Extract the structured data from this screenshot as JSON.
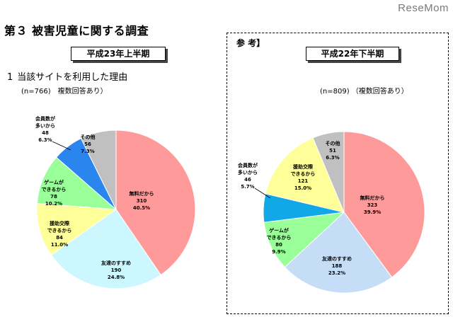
{
  "watermark": "ReseMom",
  "page_title": "第３ 被害児童に関する調査",
  "reference_label": "参 考】",
  "section": {
    "number": "1",
    "title": "当該サイトを利用した理由"
  },
  "chart_data": [
    {
      "type": "pie",
      "period": "平成23年上半期",
      "note": "(n=766)　複数回答あり）",
      "slices": [
        {
          "label": "無料だから",
          "count": "310",
          "percent": "40.5%",
          "value": 40.5,
          "color": "#ff9a9a"
        },
        {
          "label": "友達のすすめ",
          "count": "190",
          "percent": "24.8%",
          "value": 24.8,
          "color": "#ccf7ff"
        },
        {
          "label": "援助交際できるから",
          "count": "84",
          "percent": "11.0%",
          "value": 11.0,
          "color": "#ffff99"
        },
        {
          "label": "ゲームができるから",
          "count": "78",
          "percent": "10.2%",
          "value": 10.2,
          "color": "#99ff99"
        },
        {
          "label": "会員数が多いから",
          "count": "48",
          "percent": "6.3%",
          "value": 6.3,
          "color": "#2a86ee"
        },
        {
          "label": "その他",
          "count": "56",
          "percent": "7.3%",
          "value": 7.3,
          "color": "#c0c0c0"
        }
      ]
    },
    {
      "type": "pie",
      "period": "平成22年下半期",
      "note": "(n=809) （複数回答あり）",
      "slices": [
        {
          "label": "無料だから",
          "count": "323",
          "percent": "39.9%",
          "value": 39.9,
          "color": "#ff9a9a"
        },
        {
          "label": "友達のすすめ",
          "count": "188",
          "percent": "23.2%",
          "value": 23.2,
          "color": "#c6ddf7"
        },
        {
          "label": "ゲームができるから",
          "count": "80",
          "percent": "9.9%",
          "value": 9.9,
          "color": "#99ff99"
        },
        {
          "label": "会員数が多いから",
          "count": "46",
          "percent": "5.7%",
          "value": 5.7,
          "color": "#11a8e8"
        },
        {
          "label": "援助交際できるから",
          "count": "121",
          "percent": "15.0%",
          "value": 15.0,
          "color": "#ffff99"
        },
        {
          "label": "その他",
          "count": "51",
          "percent": "6.3%",
          "value": 6.3,
          "color": "#c0c0c0"
        }
      ]
    }
  ]
}
